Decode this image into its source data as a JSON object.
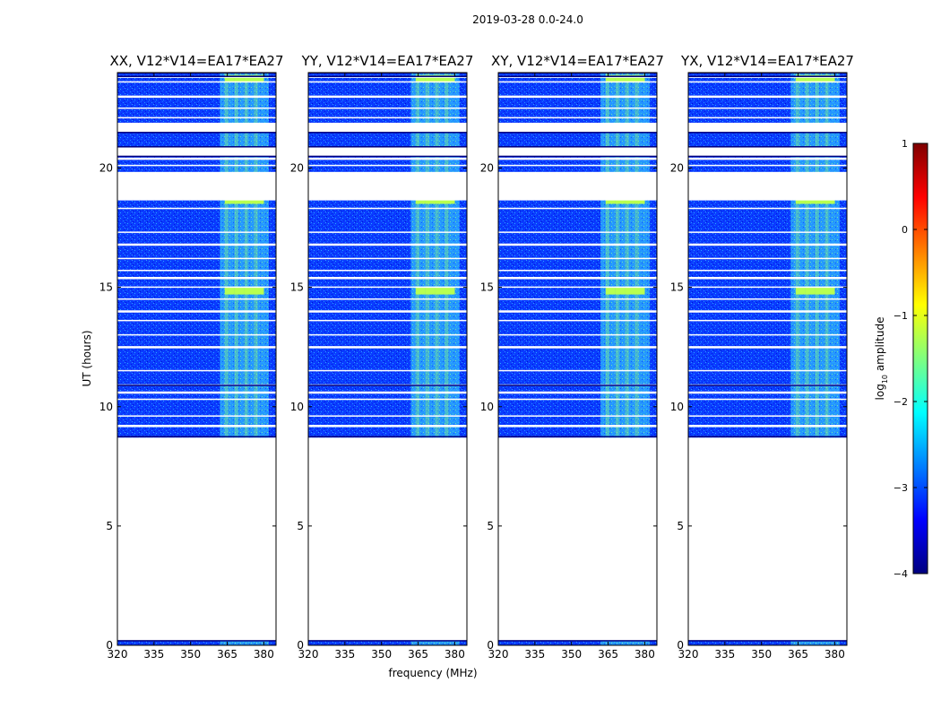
{
  "figure": {
    "title": "2019-03-28 0.0-24.0",
    "xlabel": "frequency (MHz)",
    "ylabel": "UT (hours)"
  },
  "colorbar": {
    "label_main": "log",
    "label_sub": "10",
    "label_rest": " amplitude",
    "ticks": [
      1,
      0,
      -1,
      -2,
      -3,
      -4
    ],
    "tick_labels": [
      "1",
      "0",
      "−1",
      "−2",
      "−3",
      "−4"
    ],
    "range": [
      -4,
      1
    ],
    "colormap": "jet",
    "colors": [
      "#00007f",
      "#0000ff",
      "#007fff",
      "#00ffff",
      "#7fff7f",
      "#ffff00",
      "#ff7f00",
      "#ff0000",
      "#7f0000"
    ]
  },
  "chart_data": {
    "type": "heatmap",
    "title": "2019-03-28 0.0-24.0",
    "xlabel": "frequency (MHz)",
    "ylabel": "UT (hours)",
    "xlim": [
      320,
      385
    ],
    "ylim": [
      0,
      24
    ],
    "xticks": [
      320,
      335,
      350,
      365,
      380
    ],
    "yticks": [
      0,
      5,
      10,
      15,
      20
    ],
    "panels": [
      {
        "title": "XX, V12*V14=EA17*EA27"
      },
      {
        "title": "YY, V12*V14=EA17*EA27"
      },
      {
        "title": "XY, V12*V14=EA17*EA27"
      },
      {
        "title": "YX, V12*V14=EA17*EA27"
      }
    ],
    "data_blocks_ut": [
      [
        0.0,
        0.2
      ],
      [
        8.7,
        21.5
      ],
      [
        21.5,
        24.0
      ]
    ],
    "gap_lines_ut": [
      9.2,
      9.6,
      10.3,
      10.6,
      10.9,
      11.5,
      12.5,
      13.0,
      13.6,
      14.0,
      14.5,
      15.0,
      15.4,
      15.7,
      16.2,
      16.8,
      17.3,
      18.3,
      18.7,
      19.8,
      20.1,
      20.4,
      22.1,
      22.5,
      23.0,
      23.6,
      23.8
    ],
    "blank_ranges_ut": [
      [
        0.2,
        8.7
      ],
      [
        18.7,
        19.8
      ],
      [
        20.5,
        20.9
      ],
      [
        21.5,
        21.9
      ]
    ],
    "rfi_band_mhz": [
      362,
      382
    ],
    "background_log_amplitude": -3.3,
    "rfi_log_amplitude": -1.5
  }
}
